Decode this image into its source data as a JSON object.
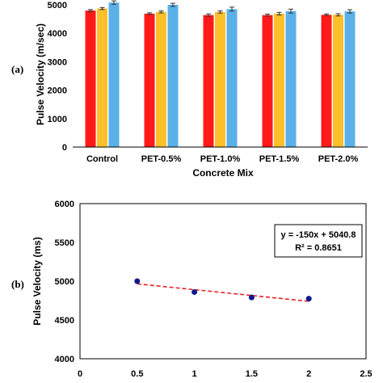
{
  "chart_data": [
    {
      "panel_label": "(a)",
      "type": "bar",
      "categories": [
        "Control",
        "PET-0.5%",
        "PET-1.0%",
        "PET-1.5%",
        "PET-2.0%"
      ],
      "series": [
        {
          "color": "#ff1a1a",
          "values": [
            4800,
            4690,
            4640,
            4640,
            4650
          ],
          "errors": [
            35,
            30,
            40,
            35,
            30
          ]
        },
        {
          "color": "#fcc02a",
          "values": [
            4870,
            4750,
            4750,
            4690,
            4650
          ],
          "errors": [
            35,
            35,
            40,
            45,
            40
          ]
        },
        {
          "color": "#5bb0e8",
          "values": [
            5080,
            5000,
            4850,
            4780,
            4770
          ],
          "errors": [
            60,
            55,
            70,
            70,
            60
          ]
        }
      ],
      "xlabel": "Concrete Mix",
      "ylabel": "Pulse Velocity (m/sec)",
      "ylim": [
        0,
        5000
      ],
      "yticks": [
        "0",
        "1000",
        "2000",
        "3000",
        "4000",
        "5000"
      ],
      "grid": false,
      "legend": "none"
    },
    {
      "panel_label": "(b)",
      "type": "scatter",
      "points": [
        {
          "x": 0.5,
          "y": 5000
        },
        {
          "x": 1.0,
          "y": 4860
        },
        {
          "x": 1.5,
          "y": 4790
        },
        {
          "x": 2.0,
          "y": 4775
        }
      ],
      "trendline": {
        "slope": -150,
        "intercept": 5040.8,
        "x_range": [
          0.5,
          2.0
        ],
        "color": "#e8232a",
        "style": "dashed"
      },
      "equation_text": "y = -150x + 5040.8",
      "r2_text": "R² = 0.8651",
      "point_color": "#0d1a8c",
      "xlabel": "",
      "ylabel": "Pulse Velocity (ms)",
      "xlim": [
        0,
        2.5
      ],
      "ylim": [
        4000,
        6000
      ],
      "xticks": [
        "0",
        "0.5",
        "1",
        "1.5",
        "2",
        "2.5"
      ],
      "yticks": [
        "4000",
        "4500",
        "5000",
        "5500",
        "6000"
      ],
      "grid": false,
      "legend": "none"
    }
  ]
}
